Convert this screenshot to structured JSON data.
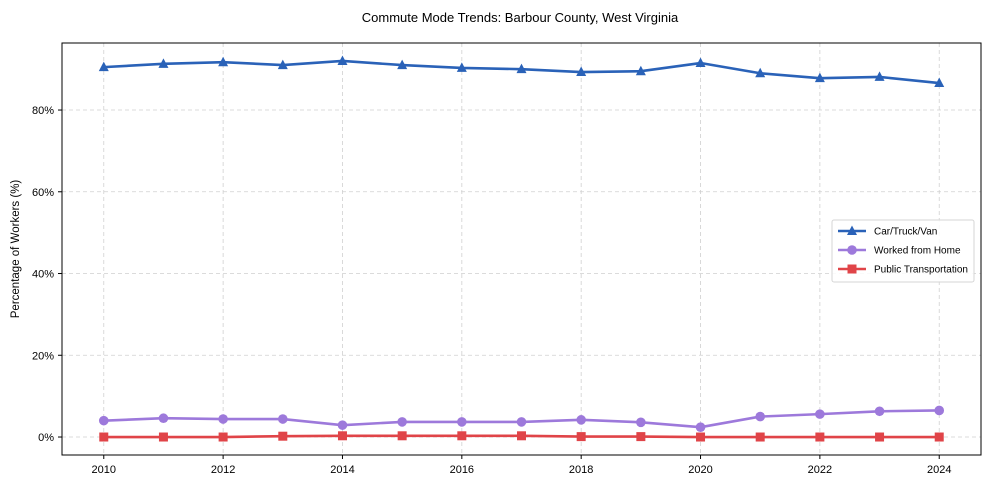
{
  "chart_data": {
    "type": "line",
    "title": "Commute Mode Trends: Barbour County, West Virginia",
    "xlabel": "",
    "ylabel": "Percentage of Workers (%)",
    "x": [
      2010,
      2011,
      2012,
      2013,
      2014,
      2015,
      2016,
      2017,
      2018,
      2019,
      2020,
      2021,
      2022,
      2023,
      2024
    ],
    "x_ticks": [
      2010,
      2012,
      2014,
      2016,
      2018,
      2020,
      2022,
      2024
    ],
    "x_tick_labels": [
      "2010",
      "2012",
      "2014",
      "2016",
      "2018",
      "2020",
      "2022",
      "2024"
    ],
    "y_ticks": [
      0,
      20,
      40,
      60,
      80
    ],
    "y_tick_labels": [
      "0%",
      "20%",
      "40%",
      "60%",
      "80%"
    ],
    "xlim": [
      2009.3,
      2024.7
    ],
    "ylim": [
      -4.4,
      96.4
    ],
    "grid": true,
    "legend_position": "center right",
    "series": [
      {
        "name": "Car/Truck/Van",
        "color": "#2a62b8",
        "marker": "triangle",
        "values": [
          90.5,
          91.3,
          91.7,
          91.0,
          92.0,
          91.0,
          90.3,
          90.0,
          89.3,
          89.5,
          91.5,
          89.0,
          87.8,
          88.1,
          86.6
        ]
      },
      {
        "name": "Worked from Home",
        "color": "#9d79db",
        "marker": "circle",
        "values": [
          4.0,
          4.6,
          4.4,
          4.4,
          2.9,
          3.7,
          3.7,
          3.7,
          4.2,
          3.6,
          2.4,
          5.0,
          5.6,
          6.3,
          6.5
        ]
      },
      {
        "name": "Public Transportation",
        "color": "#e04448",
        "marker": "square",
        "values": [
          0.0,
          0.0,
          0.0,
          0.2,
          0.3,
          0.3,
          0.3,
          0.3,
          0.1,
          0.1,
          0.0,
          0.0,
          0.0,
          0.0,
          0.0
        ]
      }
    ]
  }
}
